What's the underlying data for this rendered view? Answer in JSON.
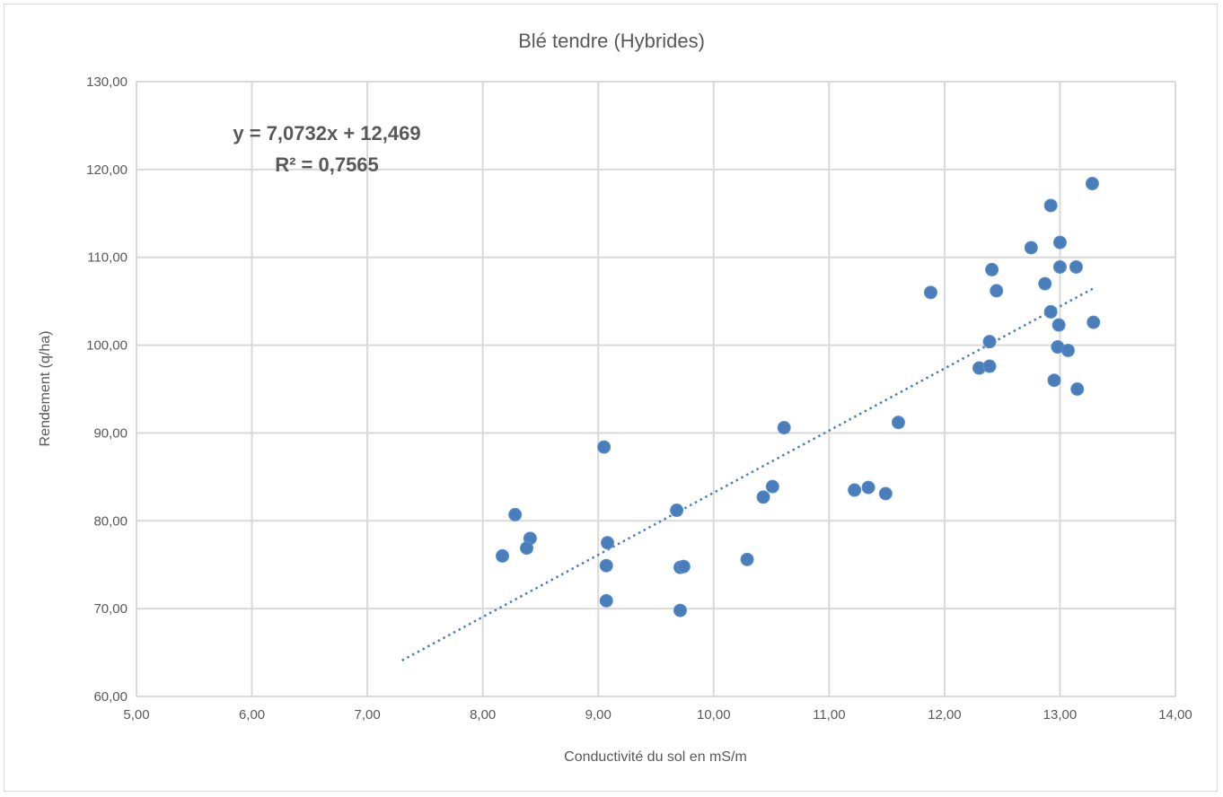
{
  "chart_data": {
    "type": "scatter",
    "title": "Blé tendre (Hybrides)",
    "xlabel": "Conductivité du sol en mS/m",
    "ylabel": "Rendement (q/ha)",
    "xlim": [
      5,
      14
    ],
    "ylim": [
      60,
      130
    ],
    "x_ticks": [
      "5,00",
      "6,00",
      "7,00",
      "8,00",
      "9,00",
      "10,00",
      "11,00",
      "12,00",
      "13,00",
      "14,00"
    ],
    "y_ticks": [
      "60,00",
      "70,00",
      "80,00",
      "90,00",
      "100,00",
      "110,00",
      "120,00",
      "130,00"
    ],
    "grid": true,
    "legend": "none",
    "marker_color": "#4a7ebb",
    "points": [
      [
        8.17,
        76.0
      ],
      [
        8.28,
        80.7
      ],
      [
        8.41,
        78.0
      ],
      [
        8.38,
        76.9
      ],
      [
        9.05,
        88.4
      ],
      [
        9.08,
        77.5
      ],
      [
        9.07,
        74.9
      ],
      [
        9.07,
        70.9
      ],
      [
        9.68,
        81.2
      ],
      [
        9.71,
        74.7
      ],
      [
        9.74,
        74.8
      ],
      [
        9.71,
        69.8
      ],
      [
        10.29,
        75.6
      ],
      [
        10.43,
        82.7
      ],
      [
        10.51,
        83.9
      ],
      [
        10.61,
        90.6
      ],
      [
        11.22,
        83.5
      ],
      [
        11.34,
        83.8
      ],
      [
        11.49,
        83.1
      ],
      [
        11.6,
        91.2
      ],
      [
        11.88,
        106.0
      ],
      [
        13.28,
        118.4
      ],
      [
        12.92,
        115.9
      ],
      [
        13.0,
        111.7
      ],
      [
        12.75,
        111.1
      ],
      [
        13.0,
        108.9
      ],
      [
        13.14,
        108.9
      ],
      [
        12.41,
        108.6
      ],
      [
        12.87,
        107.0
      ],
      [
        12.45,
        106.2
      ],
      [
        12.92,
        103.8
      ],
      [
        13.29,
        102.6
      ],
      [
        12.99,
        102.3
      ],
      [
        12.39,
        100.4
      ],
      [
        12.98,
        99.8
      ],
      [
        13.07,
        99.4
      ],
      [
        12.3,
        97.4
      ],
      [
        12.39,
        97.6
      ],
      [
        12.95,
        96.0
      ],
      [
        13.15,
        95.0
      ]
    ],
    "trendline": {
      "type": "linear",
      "slope": 7.0732,
      "intercept": 12.469,
      "x_range": [
        7.3,
        13.29
      ],
      "style": "dotted",
      "equation_label": "y = 7,0732x + 12,469",
      "r2_label": "R² = 0,7565"
    }
  }
}
